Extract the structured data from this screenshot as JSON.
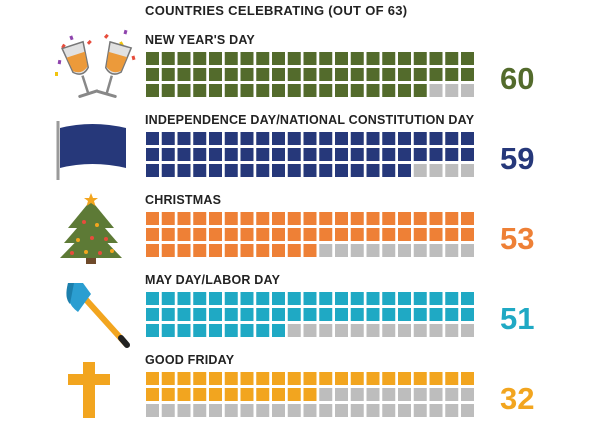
{
  "chart_data": {
    "type": "waffle",
    "title": "COUNTRIES CELEBRATING (OUT OF 63)",
    "total": 63,
    "empty_color": "#bdbdbd",
    "categories": [
      {
        "label": "NEW YEAR'S DAY",
        "value": 60,
        "display": "60",
        "color": "#536b2c",
        "icon": "champagne-glasses-icon"
      },
      {
        "label": "INDEPENDENCE DAY/NATIONAL CONSTITUTION DAY",
        "value": 59,
        "display": "59",
        "color": "#26387a",
        "icon": "flag-icon"
      },
      {
        "label": "CHRISTMAS",
        "value": 53,
        "display": "53",
        "color": "#ee8036",
        "icon": "christmas-tree-icon"
      },
      {
        "label": "MAY DAY/LABOR DAY",
        "value": 51,
        "display": "51",
        "color": "#1fa9c4",
        "icon": "axe-icon"
      },
      {
        "label": "GOOD FRIDAY",
        "value": 32,
        "display": "32",
        "color": "#f2a51f",
        "icon": "cross-icon"
      }
    ]
  }
}
